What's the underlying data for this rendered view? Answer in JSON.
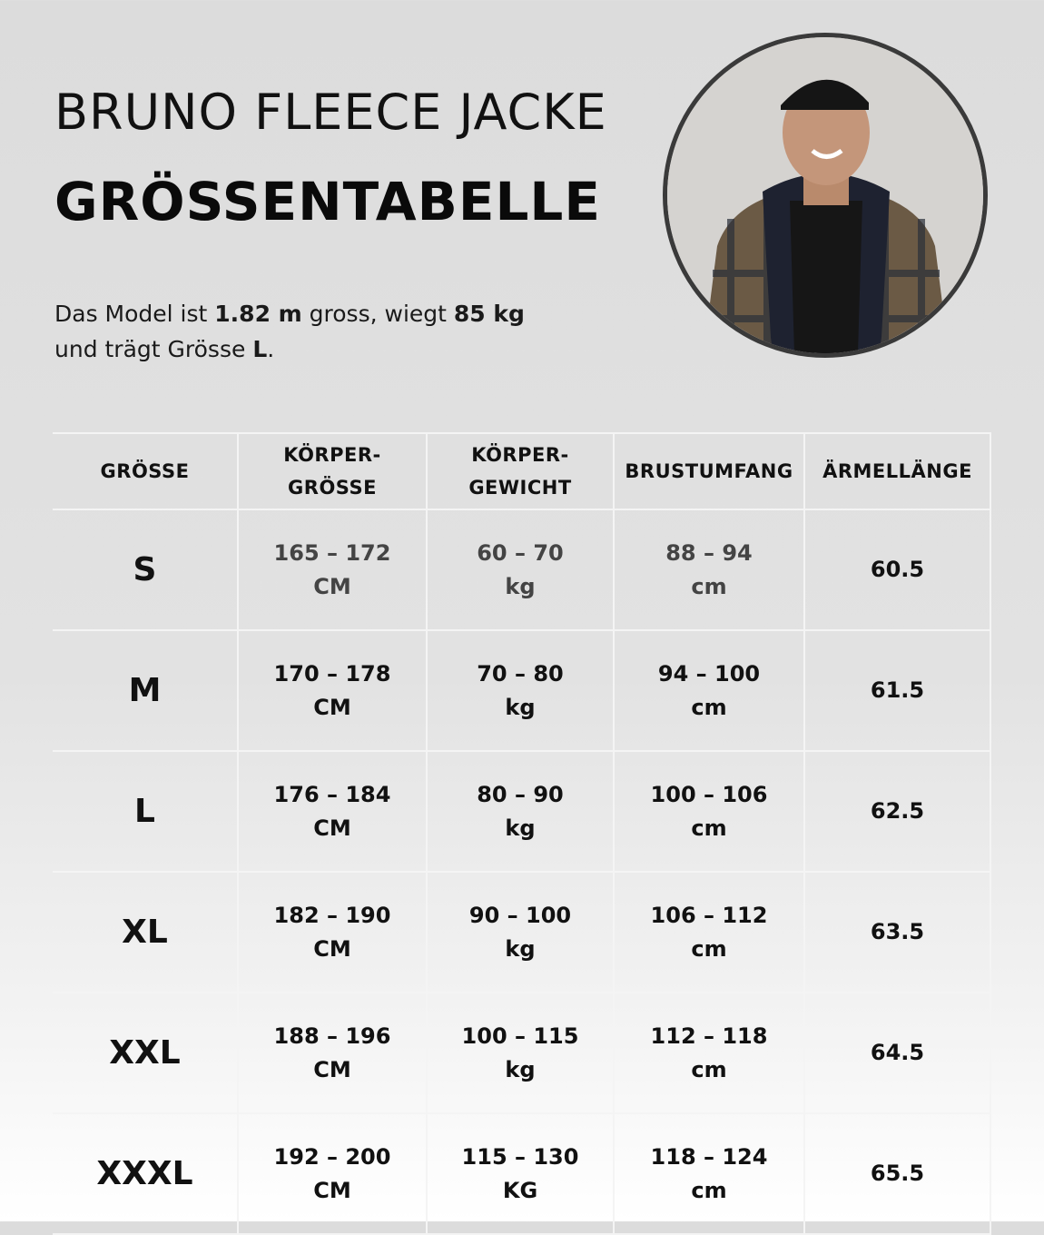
{
  "header": {
    "title": "BRUNO FLEECE JACKE",
    "subtitle": "GRÖSSENTABELLE"
  },
  "model": {
    "p1": "Das Model ist ",
    "height": "1.82 m",
    "p2": " gross, wiegt ",
    "weight": "85 kg",
    "p3": "und trägt Grösse ",
    "size": "L",
    "p4": "."
  },
  "photo": {
    "icon": "model-portrait-photo"
  },
  "table": {
    "columns": [
      [
        "KÖRPER-",
        "GRÖSSE"
      ],
      [
        "KÖRPER-",
        "GEWICHT"
      ]
    ],
    "col_size": "GRÖSSE",
    "col_chest": "BRUSTUMFANG",
    "col_sleeve": "ÄRMELLÄNGE",
    "rows": [
      {
        "size": "S",
        "height": [
          "165 – 172",
          "CM"
        ],
        "weight": [
          "60 – 70",
          "kg"
        ],
        "chest": [
          "88 – 94",
          "cm"
        ],
        "sleeve": "60.5"
      },
      {
        "size": "M",
        "height": [
          "170 – 178",
          "CM"
        ],
        "weight": [
          "70 – 80",
          "kg"
        ],
        "chest": [
          "94 – 100",
          "cm"
        ],
        "sleeve": "61.5"
      },
      {
        "size": "L",
        "height": [
          "176 – 184",
          "CM"
        ],
        "weight": [
          "80 – 90",
          "kg"
        ],
        "chest": [
          "100 – 106",
          "cm"
        ],
        "sleeve": "62.5"
      },
      {
        "size": "XL",
        "height": [
          "182 – 190",
          "CM"
        ],
        "weight": [
          "90 – 100",
          "kg"
        ],
        "chest": [
          "106 – 112",
          "cm"
        ],
        "sleeve": "63.5"
      },
      {
        "size": "XXL",
        "height": [
          "188 – 196",
          "CM"
        ],
        "weight": [
          "100 – 115",
          "kg"
        ],
        "chest": [
          "112 – 118",
          "cm"
        ],
        "sleeve": "64.5"
      },
      {
        "size": "XXXL",
        "height": [
          "192 – 200",
          "CM"
        ],
        "weight": [
          "115 – 130",
          "KG"
        ],
        "chest": [
          "118 – 124",
          "cm"
        ],
        "sleeve": "65.5"
      }
    ]
  }
}
